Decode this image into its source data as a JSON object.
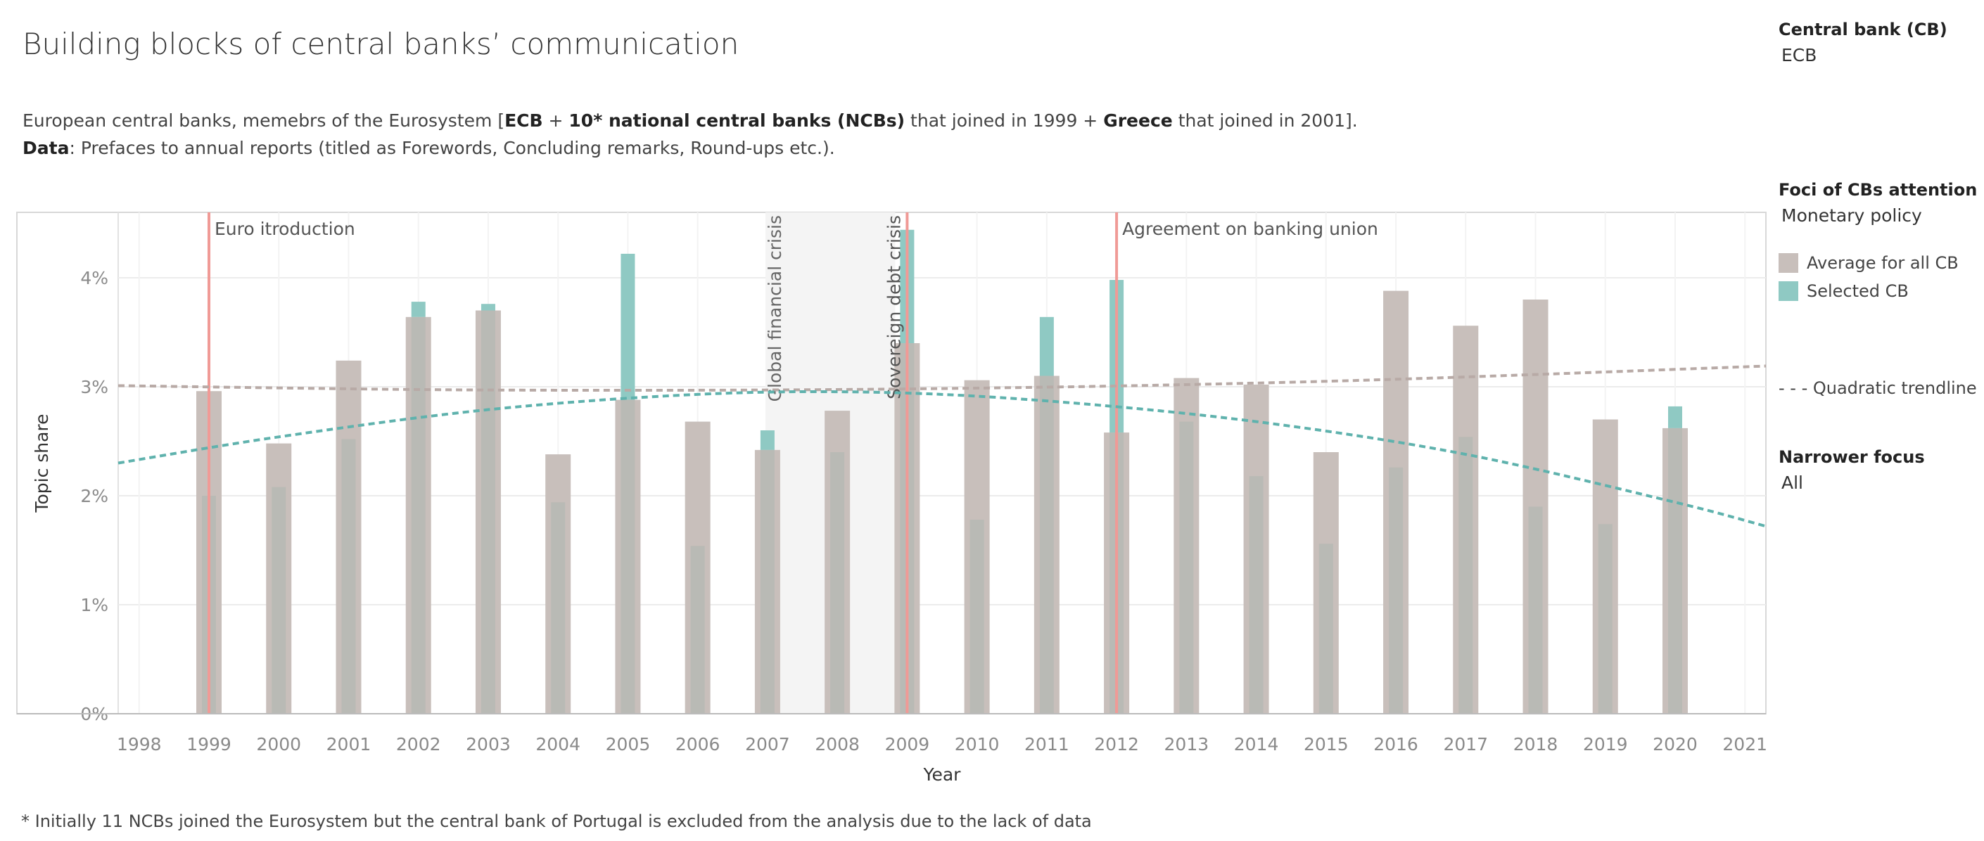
{
  "page": {
    "title": "Building blocks of central banks’ communication",
    "subtitle_line1": [
      {
        "text": "European central banks, memebrs of the Eurosystem [",
        "bold": false
      },
      {
        "text": "ECB",
        "bold": true
      },
      {
        "text": " + ",
        "bold": false
      },
      {
        "text": "10* national central banks (NCBs)",
        "bold": true
      },
      {
        "text": " that joined in 1999 + ",
        "bold": false
      },
      {
        "text": "Greece",
        "bold": true
      },
      {
        "text": " that joined in 2001].",
        "bold": false
      }
    ],
    "subtitle_line2": [
      {
        "text": "Data",
        "bold": true
      },
      {
        "text": ": Prefaces to annual reports (titled as Forewords, Concluding remarks, Round-ups etc.).",
        "bold": false
      }
    ],
    "footnote": "* Initially 11 NCBs joined the Eurosystem but the central bank of Portugal is excluded from the analysis due to the lack of data"
  },
  "filters": {
    "cb_label": "Central bank (CB)",
    "cb_value": "ECB",
    "foci_label": "Foci of CBs attention",
    "foci_value": "Monetary policy",
    "narrower_label": "Narrower focus",
    "narrower_value": "All"
  },
  "legend": {
    "average_label": "Average for all CB",
    "selected_label": "Selected CB",
    "trend_label": "- - - Quadratic trendline"
  },
  "colors": {
    "average": "#c8bfbb",
    "selected": "#8fc9c3",
    "overlap": "#b9bab5",
    "trend_avg": "#b8aaa6",
    "trend_sel": "#5fb2ad",
    "event_line": "#f09a96",
    "crisis_band": "#f4f4f4",
    "grid": "#ececec"
  },
  "chart_data": {
    "type": "bar",
    "title": "",
    "xlabel": "Year",
    "ylabel": "Topic share",
    "xlim": [
      1997.7,
      2021.3
    ],
    "ylim": [
      0,
      4.6
    ],
    "x_ticks": [
      1998,
      1999,
      2000,
      2001,
      2002,
      2003,
      2004,
      2005,
      2006,
      2007,
      2008,
      2009,
      2010,
      2011,
      2012,
      2013,
      2014,
      2015,
      2016,
      2017,
      2018,
      2019,
      2020,
      2021
    ],
    "y_ticks": [
      0,
      1,
      2,
      3,
      4
    ],
    "y_tick_labels": [
      "0%",
      "1%",
      "2%",
      "3%",
      "4%"
    ],
    "series": [
      {
        "name": "Average for all CB",
        "x": [
          1999,
          2000,
          2001,
          2002,
          2003,
          2004,
          2005,
          2006,
          2007,
          2008,
          2009,
          2010,
          2011,
          2012,
          2013,
          2014,
          2015,
          2016,
          2017,
          2018,
          2019,
          2020
        ],
        "values": [
          2.96,
          2.48,
          3.24,
          3.64,
          3.7,
          2.38,
          2.88,
          2.68,
          2.42,
          2.78,
          3.4,
          3.06,
          3.1,
          2.58,
          3.08,
          3.02,
          2.4,
          3.88,
          3.56,
          3.8,
          2.7,
          2.62
        ]
      },
      {
        "name": "Selected CB",
        "x": [
          1999,
          2000,
          2001,
          2002,
          2003,
          2004,
          2005,
          2006,
          2007,
          2008,
          2009,
          2010,
          2011,
          2012,
          2013,
          2014,
          2015,
          2016,
          2017,
          2018,
          2019,
          2020
        ],
        "values": [
          2.0,
          2.08,
          2.52,
          3.78,
          3.76,
          1.94,
          4.22,
          1.54,
          2.6,
          2.4,
          4.44,
          1.78,
          3.64,
          3.98,
          2.68,
          2.18,
          1.56,
          2.26,
          2.54,
          1.9,
          1.74,
          2.82
        ]
      }
    ],
    "trendlines": [
      {
        "name": "Average for all CB quadratic trend",
        "x": [
          1997.7,
          2003,
          2009,
          2015,
          2021.3
        ],
        "values": [
          3.01,
          2.97,
          2.98,
          3.05,
          3.19
        ]
      },
      {
        "name": "Selected CB quadratic trend",
        "x": [
          1997.7,
          2000,
          2003,
          2006,
          2008.5,
          2011,
          2014,
          2017,
          2020,
          2021.3
        ],
        "values": [
          2.3,
          2.54,
          2.79,
          2.93,
          2.95,
          2.87,
          2.68,
          2.38,
          1.94,
          1.72
        ]
      }
    ],
    "events": [
      {
        "label": "Euro itroduction",
        "x": 1999,
        "orientation": "horizontal"
      },
      {
        "label": "Sovereign debt crisis",
        "x": 2009,
        "orientation": "vertical"
      },
      {
        "label": "Agreement on banking union",
        "x": 2012,
        "orientation": "horizontal"
      }
    ],
    "shaded_periods": [
      {
        "label": "Global financial crisis",
        "from": 2006.97,
        "to": 2008.83
      }
    ]
  }
}
